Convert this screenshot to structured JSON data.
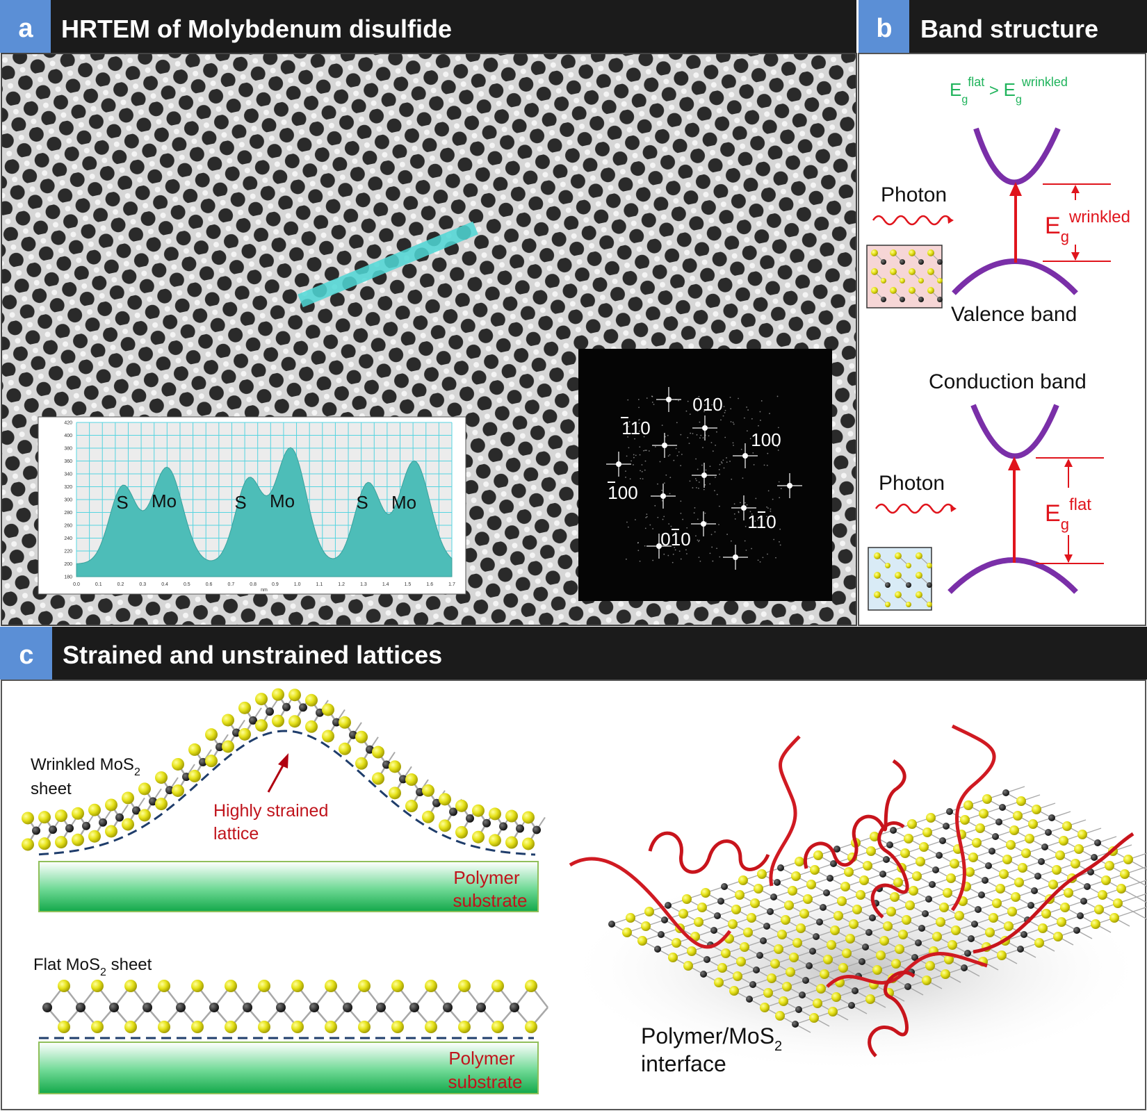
{
  "panel_a": {
    "tag": "a",
    "title": "HRTEM of Molybdenum disulfide",
    "profile": {
      "y_ticks": [
        "420",
        "400",
        "380",
        "360",
        "340",
        "320",
        "300",
        "280",
        "260",
        "240",
        "220",
        "200",
        "180"
      ],
      "x_ticks": [
        "0.0",
        "0.1",
        "0.2",
        "0.3",
        "0.4",
        "0.5",
        "0.6",
        "0.7",
        "0.8",
        "0.9",
        "1.0",
        "1.1",
        "1.2",
        "1.3",
        "1.4",
        "1.5",
        "1.6",
        "1.7"
      ],
      "x_unit": "nm",
      "labels": [
        "S",
        "Mo",
        "S",
        "Mo",
        "S",
        "Mo"
      ]
    },
    "fft_labels": {
      "l010": "010",
      "l110bar": "110",
      "l100": "100",
      "l100bar": "100",
      "l110b": "110",
      "l010bar": "010"
    }
  },
  "panel_b": {
    "tag": "b",
    "title": "Band structure",
    "relation": {
      "base1": "E",
      "sub1": "g",
      "sup1": "flat",
      "op": " > ",
      "base2": "E",
      "sub2": "g",
      "sup2": "wrinkled"
    },
    "photon_top": "Photon",
    "valence": "Valence band",
    "eg_wr": {
      "base": "E",
      "sub": "g",
      "sup": "wrinkled"
    },
    "conduction": "Conduction  band",
    "photon_bottom": "Photon",
    "eg_flat": {
      "base": "E",
      "sub": "g",
      "sup": "flat"
    }
  },
  "panel_c": {
    "tag": "c",
    "title": "Strained and unstrained lattices",
    "wrinkled_label_l1_pre": "Wrinkled MoS",
    "wrinkled_label_sub": "2",
    "wrinkled_label_l2": "sheet",
    "highly_l1": "Highly strained",
    "highly_l2": "lattice",
    "poly1_l1": "Polymer",
    "poly1_l2": "substrate",
    "flat_label_pre": "Flat MoS",
    "flat_label_sub": "2",
    "flat_label_post": " sheet",
    "poly2_l1": "Polymer",
    "poly2_l2": "substrate",
    "interface_l1_pre": "Polymer/MoS",
    "interface_l1_sub": "2",
    "interface_l2": "interface"
  },
  "colors": {
    "header_bg": "#1b1b1b",
    "tag_bg": "#5b8fd6",
    "red": "#e0141c",
    "purple": "#7a2fa8",
    "green_text": "#1fb35b",
    "teal": "#4dbdb8",
    "sulfur": "#e6e21a",
    "molybdenum": "#1a1a1a",
    "substrate": "#1db954"
  }
}
